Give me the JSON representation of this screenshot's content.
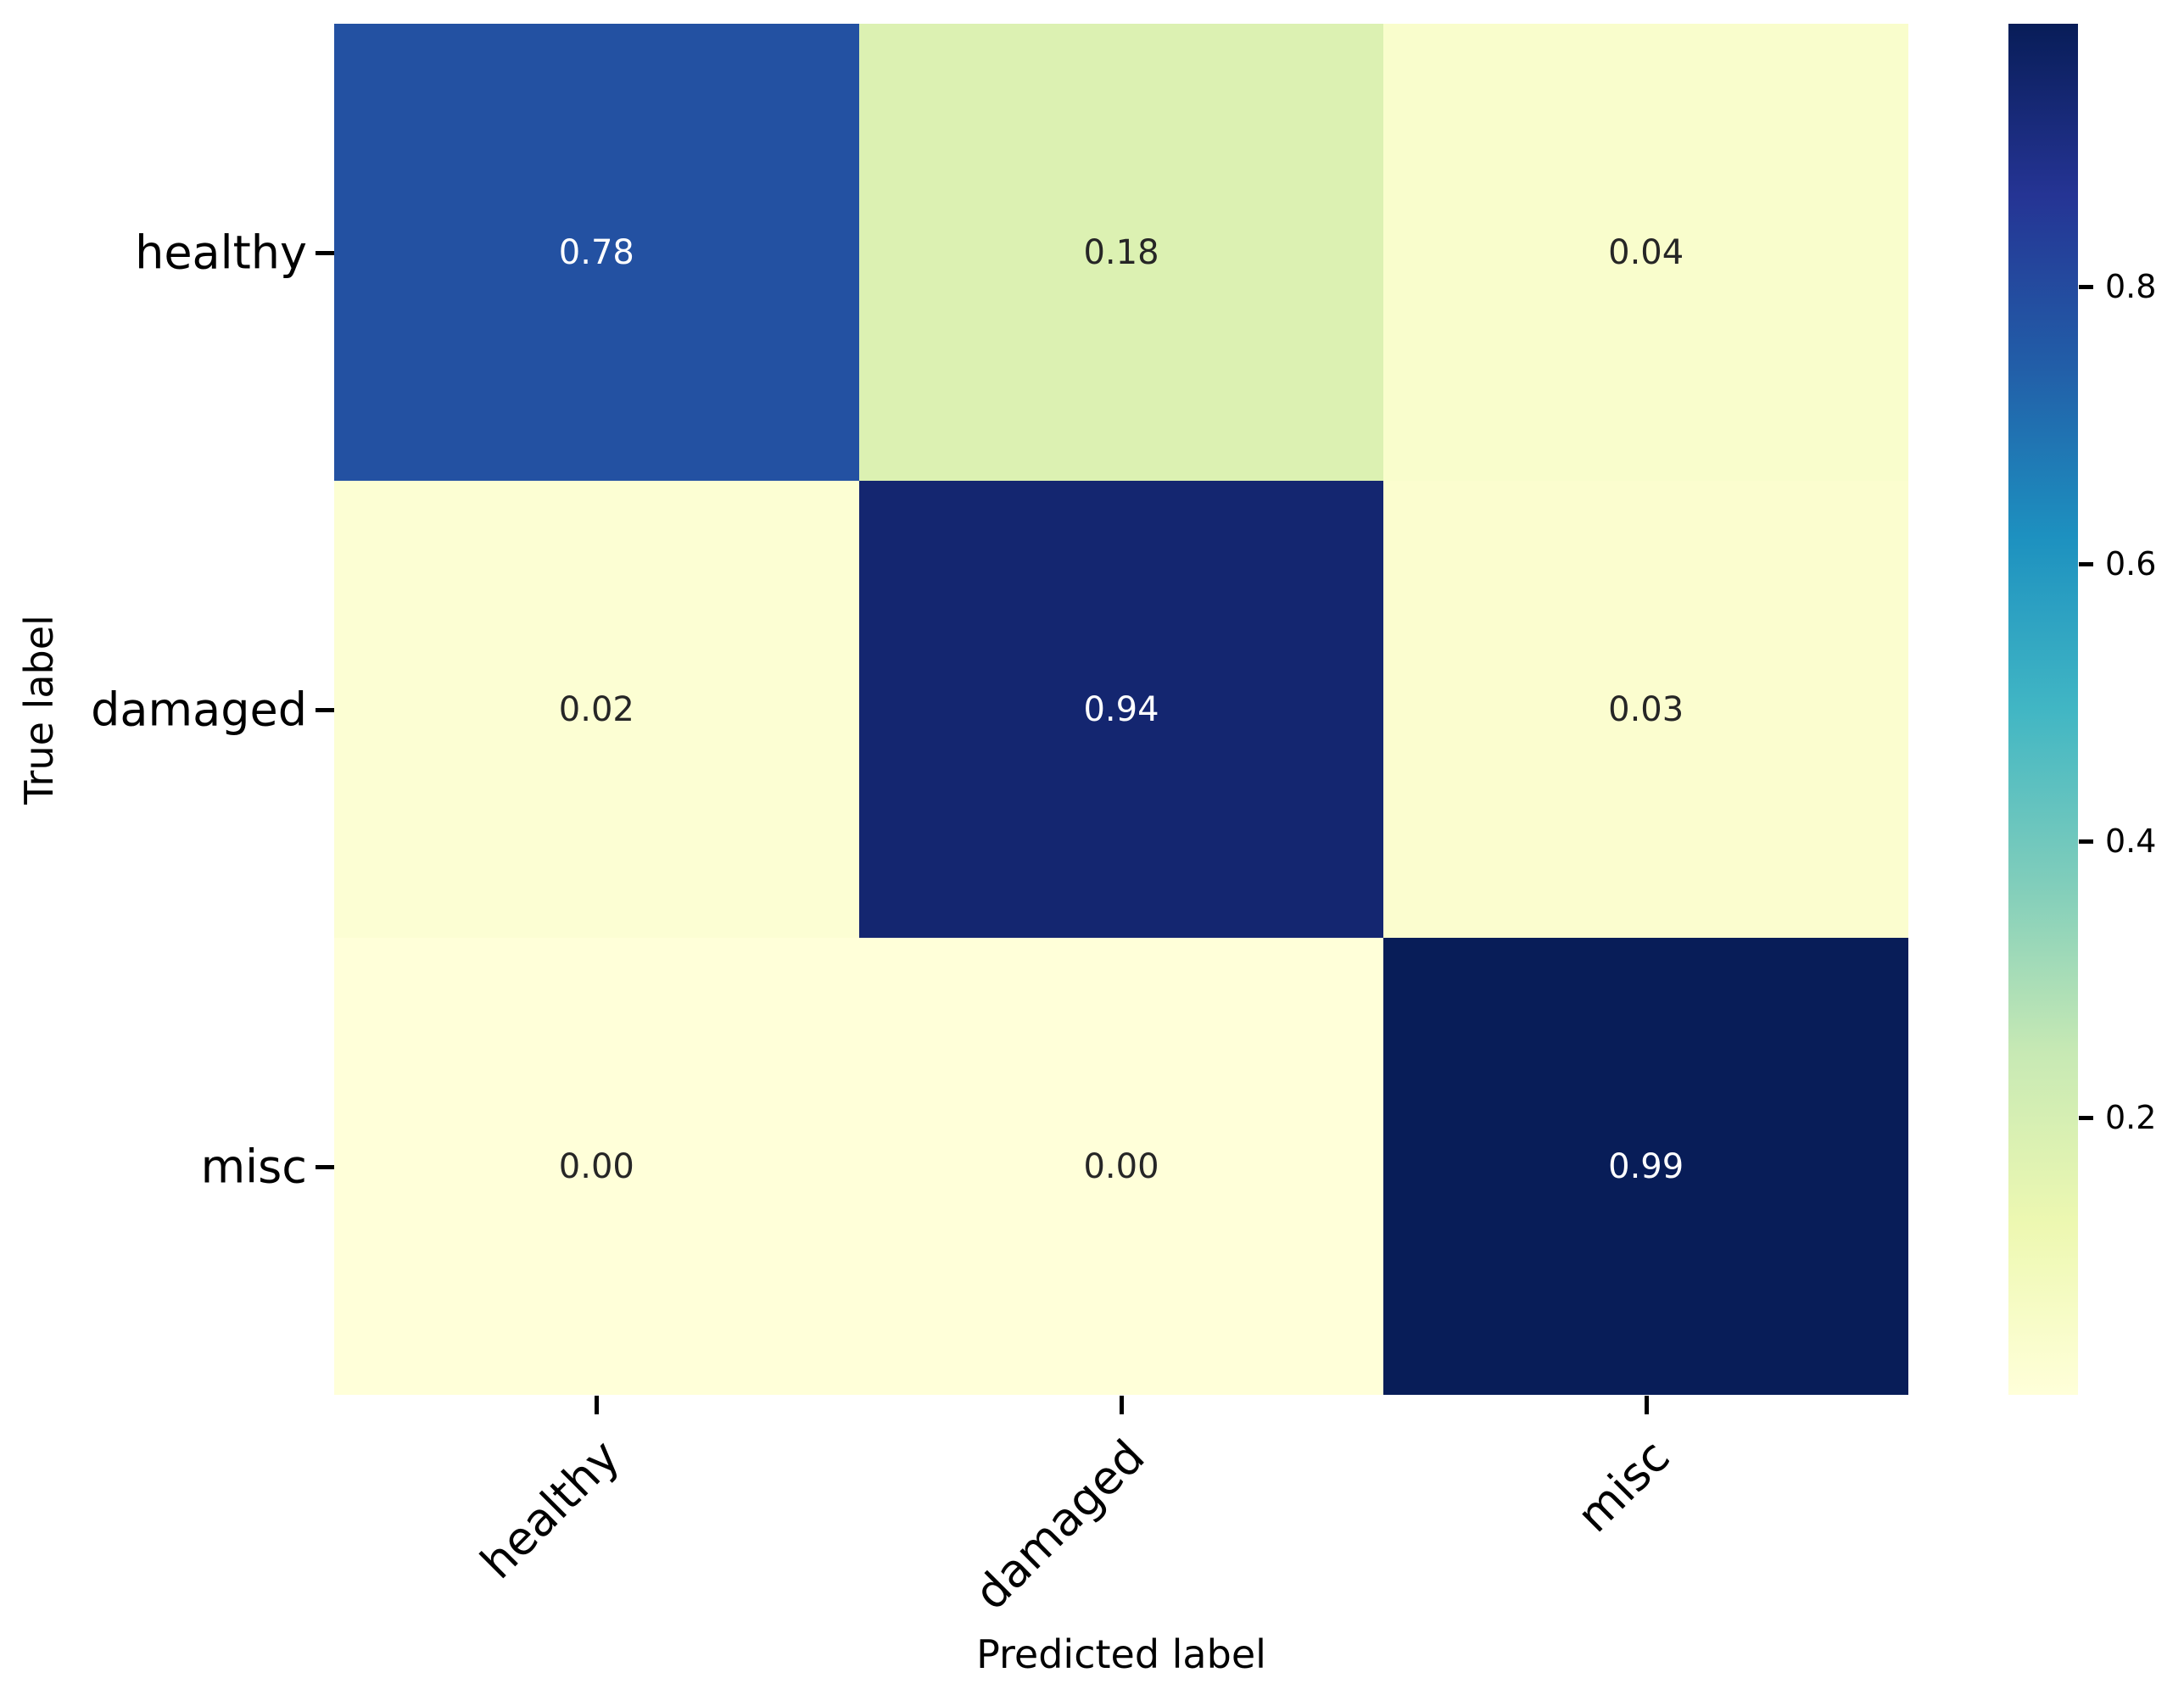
{
  "figure": {
    "background": "#ffffff"
  },
  "chart_data": {
    "type": "heatmap",
    "subtype": "confusion-matrix",
    "title": "",
    "xlabel": "Predicted label",
    "ylabel": "True label",
    "x_tick_labels": [
      "healthy",
      "damaged",
      "misc"
    ],
    "y_tick_labels": [
      "healthy",
      "damaged",
      "misc"
    ],
    "matrix": [
      [
        0.78,
        0.18,
        0.04
      ],
      [
        0.02,
        0.94,
        0.03
      ],
      [
        0.0,
        0.0,
        0.99
      ]
    ],
    "cell_labels": [
      [
        "0.78",
        "0.18",
        "0.04"
      ],
      [
        "0.02",
        "0.94",
        "0.03"
      ],
      [
        "0.00",
        "0.00",
        "0.99"
      ]
    ],
    "vmin": 0.0,
    "vmax": 0.99,
    "grid": false,
    "legend_position": "right-colorbar",
    "colormap": {
      "name": "YlGnBu",
      "stops": [
        {
          "pos": 0.0,
          "color": "#ffffd9"
        },
        {
          "pos": 0.125,
          "color": "#edf8b1"
        },
        {
          "pos": 0.25,
          "color": "#c7e9b4"
        },
        {
          "pos": 0.375,
          "color": "#7fcdbb"
        },
        {
          "pos": 0.5,
          "color": "#41b6c4"
        },
        {
          "pos": 0.625,
          "color": "#1d91c0"
        },
        {
          "pos": 0.75,
          "color": "#225ea8"
        },
        {
          "pos": 0.875,
          "color": "#253494"
        },
        {
          "pos": 1.0,
          "color": "#081d58"
        }
      ]
    },
    "colorbar": {
      "tick_labels": [
        "0.8",
        "0.6",
        "0.4",
        "0.2"
      ],
      "tick_values": [
        0.8,
        0.6,
        0.4,
        0.2
      ]
    },
    "annotation_text_dark": "#262626",
    "annotation_text_light": "#ffffff",
    "tick_color": "#000000"
  }
}
